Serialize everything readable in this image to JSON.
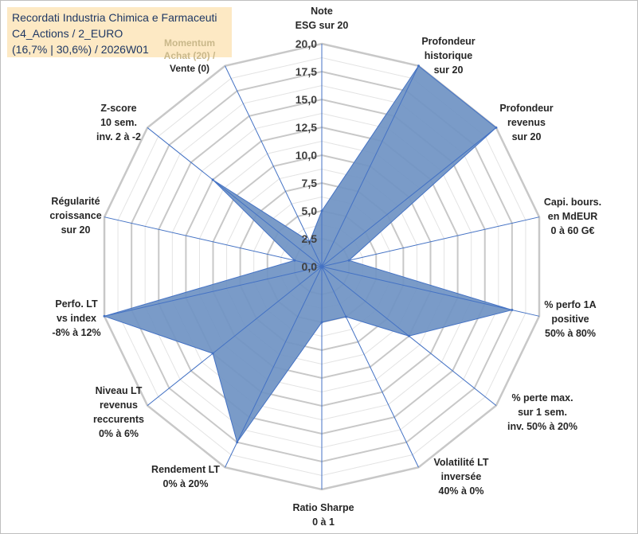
{
  "title": {
    "line1": "Recordati Industria Chimica e Farmaceuti",
    "line2": "C4_Actions / 2_EURO",
    "line3": "(16,7% | 30,6%) / 2026W01"
  },
  "momentum_label": "Momentum Achat (20) /",
  "colors": {
    "fill": "#6f93c3",
    "stroke": "#4472c4",
    "grid": "#c8c8c8",
    "spoke": "#4472c4"
  },
  "chart_data": {
    "type": "radar",
    "r_range": [
      0,
      20
    ],
    "r_ticks": [
      "0,0",
      "2,5",
      "5,0",
      "7,5",
      "10,0",
      "12,5",
      "15,0",
      "17,5",
      "20,0"
    ],
    "axes": [
      {
        "label": [
          "Note",
          "ESG sur 20"
        ],
        "value": 5.0
      },
      {
        "label": [
          "Profondeur",
          "historique",
          "sur 20"
        ],
        "value": 20.0
      },
      {
        "label": [
          "Profondeur",
          "revenus",
          "sur 20"
        ],
        "value": 20.0
      },
      {
        "label": [
          "Capi. bours.",
          "en MdEUR",
          "0 à 60 G€"
        ],
        "value": 2.5
      },
      {
        "label": [
          "% perfo 1A",
          "positive",
          "50% à 80%"
        ],
        "value": 17.5
      },
      {
        "label": [
          "% perte max.",
          "sur 1 sem.",
          "inv. 50% à 20%"
        ],
        "value": 10.0
      },
      {
        "label": [
          "Volatilité LT",
          "inversée",
          "40% à 0%"
        ],
        "value": 5.0
      },
      {
        "label": [
          "Ratio Sharpe",
          "0 à 1"
        ],
        "value": 5.0
      },
      {
        "label": [
          "Rendement LT",
          "0% à 20%"
        ],
        "value": 17.5
      },
      {
        "label": [
          "Niveau LT",
          "revenus",
          "reccurents",
          "0% à 6%"
        ],
        "value": 12.5
      },
      {
        "label": [
          "Perfo. LT",
          "vs index",
          "-8% à 12%"
        ],
        "value": 20.0
      },
      {
        "label": [
          "Régularité",
          "croissance",
          "sur 20"
        ],
        "value": 2.5
      },
      {
        "label": [
          "Z-score",
          "10 sem.",
          "inv. 2 à -2"
        ],
        "value": 12.5
      },
      {
        "label": [
          "Momentum",
          "Achat (20) /",
          "Vente (0)"
        ],
        "value": 2.5
      }
    ]
  }
}
